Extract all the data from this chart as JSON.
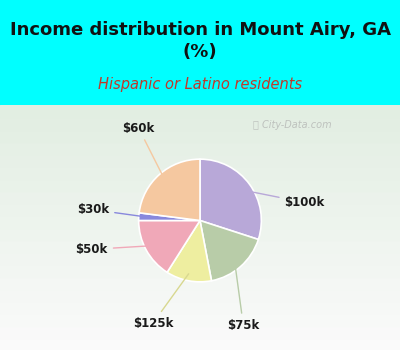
{
  "title": "Income distribution in Mount Airy, GA\n(%)",
  "subtitle": "Hispanic or Latino residents",
  "title_color": "#111111",
  "subtitle_color": "#c0392b",
  "background_color": "#00ffff",
  "chart_bg_color": "#e0f0e0",
  "watermark": "ⓘ City-Data.com",
  "slices": [
    {
      "label": "$100k",
      "value": 30,
      "color": "#b8a8d8"
    },
    {
      "label": "$75k",
      "value": 17,
      "color": "#b8cca8"
    },
    {
      "label": "$125k",
      "value": 12,
      "color": "#eeeea0"
    },
    {
      "label": "$50k",
      "value": 16,
      "color": "#f0a8b8"
    },
    {
      "label": "$30k",
      "value": 2,
      "color": "#8888dd"
    },
    {
      "label": "$60k",
      "value": 23,
      "color": "#f5c8a0"
    }
  ],
  "label_fontsize": 8.5,
  "title_fontsize": 13,
  "subtitle_fontsize": 10.5,
  "subtitle_italic": true
}
